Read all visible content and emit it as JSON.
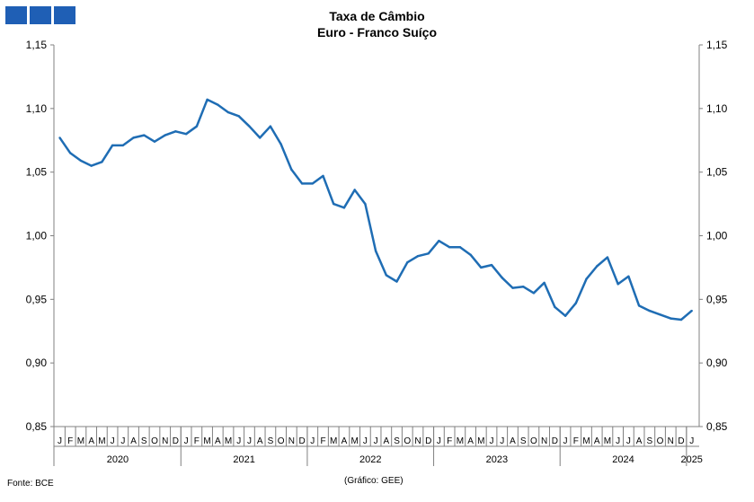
{
  "header": {
    "title": "Taxa de Câmbio",
    "subtitle": "Euro - Franco Suíço"
  },
  "footer": {
    "source": "Fonte: BCE",
    "credit": "(Gráfico: GEE)"
  },
  "colors": {
    "line": "#1f6db4",
    "logo": "#1f5fb5"
  },
  "chart_data": {
    "type": "line",
    "title": "Taxa de Câmbio",
    "subtitle": "Euro - Franco Suíço",
    "ylim": [
      0.85,
      1.15
    ],
    "yticks": [
      "0,85",
      "0,90",
      "0,95",
      "1,00",
      "1,05",
      "1,10",
      "1,15"
    ],
    "ytick_values": [
      0.85,
      0.9,
      0.95,
      1.0,
      1.05,
      1.1,
      1.15
    ],
    "month_labels": [
      "J",
      "F",
      "M",
      "A",
      "M",
      "J",
      "J",
      "A",
      "S",
      "O",
      "N",
      "D"
    ],
    "years": [
      "2020",
      "2021",
      "2022",
      "2023",
      "2024",
      "2025"
    ],
    "series": [
      {
        "values": [
          1.077,
          1.065,
          1.059,
          1.055,
          1.058,
          1.071,
          1.071,
          1.077,
          1.079,
          1.074,
          1.079,
          1.082,
          1.08,
          1.086,
          1.107,
          1.103,
          1.097,
          1.094,
          1.086,
          1.077,
          1.086,
          1.072,
          1.052,
          1.041,
          1.041,
          1.047,
          1.025,
          1.022,
          1.036,
          1.025,
          0.988,
          0.969,
          0.964,
          0.979,
          0.984,
          0.986,
          0.996,
          0.991,
          0.991,
          0.985,
          0.975,
          0.977,
          0.967,
          0.959,
          0.96,
          0.955,
          0.963,
          0.944,
          0.937,
          0.947,
          0.966,
          0.976,
          0.983,
          0.962,
          0.968,
          0.945,
          0.941,
          0.938,
          0.935,
          0.934,
          0.941
        ]
      }
    ]
  }
}
